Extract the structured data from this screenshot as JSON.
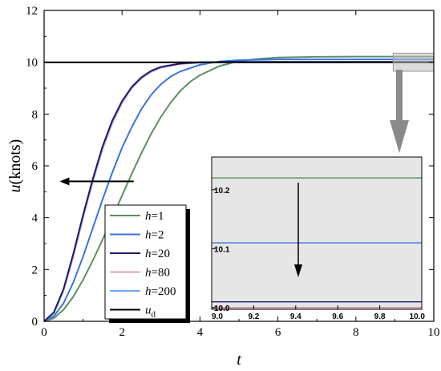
{
  "chart_data": {
    "type": "line",
    "xlabel": "t",
    "ylabel": "u(knots)",
    "xlim": [
      0,
      10
    ],
    "ylim": [
      0,
      12
    ],
    "xticks": [
      "0",
      "2",
      "4",
      "6",
      "8",
      "10"
    ],
    "yticks": [
      "0",
      "2",
      "4",
      "6",
      "8",
      "10",
      "12"
    ],
    "legend_placement": "lower-center",
    "series": [
      {
        "name_var": "h",
        "name_val": "=1",
        "color": "#5a9160",
        "x": [
          0,
          0.25,
          0.5,
          0.75,
          1,
          1.25,
          1.5,
          1.75,
          2,
          2.25,
          2.5,
          2.75,
          3,
          3.25,
          3.5,
          3.75,
          4,
          4.5,
          5,
          5.5,
          6,
          7,
          8,
          9,
          10
        ],
        "y": [
          0,
          0.12,
          0.45,
          0.95,
          1.6,
          2.35,
          3.15,
          4.0,
          4.85,
          5.7,
          6.5,
          7.25,
          7.9,
          8.45,
          8.9,
          9.25,
          9.5,
          9.85,
          10.05,
          10.13,
          10.18,
          10.21,
          10.22,
          10.22,
          10.22
        ]
      },
      {
        "name_var": "h",
        "name_val": "=2",
        "color": "#3a74e0",
        "x": [
          0,
          0.25,
          0.5,
          0.75,
          1,
          1.25,
          1.5,
          1.75,
          2,
          2.25,
          2.5,
          2.75,
          3,
          3.25,
          3.5,
          4,
          4.5,
          5,
          6,
          7,
          8,
          9,
          10
        ],
        "y": [
          0,
          0.2,
          0.7,
          1.5,
          2.5,
          3.6,
          4.7,
          5.75,
          6.7,
          7.5,
          8.2,
          8.75,
          9.15,
          9.45,
          9.65,
          9.9,
          10.03,
          10.08,
          10.11,
          10.11,
          10.11,
          10.11,
          10.11
        ]
      },
      {
        "name_var": "h",
        "name_val": "=20",
        "color": "#1a1a6e",
        "x": [
          0,
          0.25,
          0.5,
          0.75,
          1,
          1.25,
          1.5,
          1.75,
          2,
          2.25,
          2.5,
          2.75,
          3,
          3.5,
          4,
          5,
          6,
          8,
          10
        ],
        "y": [
          0,
          0.35,
          1.25,
          2.6,
          4.1,
          5.5,
          6.75,
          7.75,
          8.5,
          9.05,
          9.42,
          9.67,
          9.82,
          9.95,
          10.0,
          10.01,
          10.01,
          10.01,
          10.01
        ]
      },
      {
        "name_var": "h",
        "name_val": "=80",
        "color": "#e8a0b8",
        "x": [
          0,
          0.25,
          0.5,
          0.75,
          1,
          1.25,
          1.5,
          1.75,
          2,
          2.25,
          2.5,
          2.75,
          3,
          3.5,
          4,
          5,
          6,
          8,
          10
        ],
        "y": [
          0,
          0.33,
          1.2,
          2.55,
          4.05,
          5.45,
          6.7,
          7.7,
          8.46,
          9.02,
          9.4,
          9.65,
          9.8,
          9.94,
          9.99,
          10.0,
          10.0,
          10.0,
          10.0
        ]
      },
      {
        "name_var": "h",
        "name_val": "=200",
        "color": "#6aaae8",
        "x": [
          0,
          0.25,
          0.5,
          0.75,
          1,
          1.25,
          1.5,
          1.75,
          2,
          2.25,
          2.5,
          2.75,
          3,
          3.5,
          4,
          5,
          6,
          8,
          10
        ],
        "y": [
          0,
          0.32,
          1.18,
          2.5,
          4.0,
          5.4,
          6.65,
          7.66,
          8.43,
          9.0,
          9.38,
          9.63,
          9.79,
          9.93,
          9.98,
          10.0,
          10.0,
          10.0,
          10.0
        ]
      },
      {
        "name_var": "u",
        "name_sub": "d",
        "name_val": "",
        "color": "#000000",
        "x": [
          0,
          10
        ],
        "y": [
          10,
          10
        ]
      }
    ],
    "inset": {
      "xlim": [
        9.0,
        10.0
      ],
      "ylim": [
        10.0,
        10.25
      ],
      "xticks": [
        "9.0",
        "9.2",
        "9.4",
        "9.6",
        "9.8",
        "10.0"
      ],
      "xtick_values": [
        9.0,
        9.2,
        9.4,
        9.6,
        9.8,
        10.0
      ],
      "yticks": [
        "10.0",
        "10.1",
        "10.2"
      ],
      "ytick_values": [
        10.0,
        10.1,
        10.2
      ],
      "background": "#e6e6e6"
    },
    "annotations": {
      "arrow_left_x_range": [
        2.3,
        0.4
      ],
      "arrow_left_y": 5.4,
      "zoom_box_x_range": [
        9.0,
        10.0
      ],
      "zoom_box_y_range": [
        9.65,
        10.35
      ]
    }
  }
}
